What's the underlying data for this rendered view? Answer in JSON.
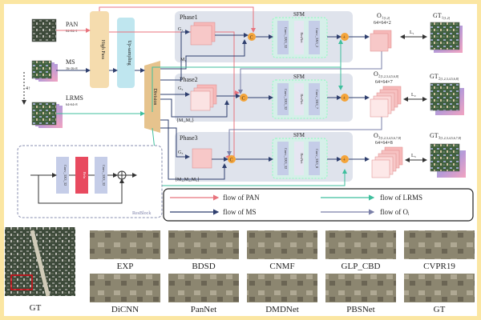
{
  "inputs": {
    "pan": "PAN",
    "pan_size": "64×64×1",
    "ms": "MS",
    "ms_size": "16×16×8",
    "lrms": "LRMS",
    "lrms_size": "64×64×8",
    "scale": "4↑"
  },
  "blocks": {
    "highpass": "High Pass",
    "upsampling": "Up-sampling",
    "division": "Division"
  },
  "phases": [
    {
      "title": "Phase1",
      "g": "G₁",
      "m": "M₁",
      "sfm": "SFM",
      "convs": [
        "Conv_3X3_32",
        "ResNet",
        "Conv_3X3_2"
      ],
      "out": "O₁",
      "out_sub": "[1,2]",
      "out_size": "64×64×2",
      "loss": "L₁",
      "gt": "GT₁",
      "gt_sub": "[1,2]"
    },
    {
      "title": "Phase2",
      "g": "G₂",
      "m": "{M₁,M₂}",
      "sfm": "SFM",
      "convs": [
        "Conv_3X3_32",
        "ResNet",
        "Conv_3X3_7"
      ],
      "out": "O₂",
      "out_sub": "[1,2,3,4,5,6,8]",
      "out_size": "64×64×7",
      "loss": "L₂",
      "gt": "GT₂",
      "gt_sub": "[1,2,3,4,5,6,8]"
    },
    {
      "title": "Phase3",
      "g": "G₃",
      "m": "{M₁,M₂,M₃}",
      "sfm": "SFM",
      "convs": [
        "Conv_3X3_32",
        "ResNet",
        "Conv_3X3_8"
      ],
      "out": "O₃",
      "out_sub": "[1,2,3,4,5,6,7,8]",
      "out_size": "64×64×8",
      "loss": "L₃",
      "gt": "GT₃",
      "gt_sub": "[1,2,3,4,5,6,7,8]"
    }
  ],
  "resblock": {
    "title": "ResBlock",
    "convs": [
      "Conv_3X3_32",
      "Relu",
      "Conv_3X3_32"
    ]
  },
  "legend": [
    {
      "label": "flow of PAN",
      "color": "#e8737d"
    },
    {
      "label": "flow of  LRMS",
      "color": "#3fbf9d"
    },
    {
      "label": "flow of MS",
      "color": "#2f3f6e"
    },
    {
      "label": "flow of Oᵢ",
      "color": "#7a7fa8"
    }
  ],
  "gallery": {
    "gt_main": "GT",
    "row1": [
      "EXP",
      "BDSD",
      "CNMF",
      "GLP_CBD",
      "CVPR19"
    ],
    "row2": [
      "DiCNN",
      "PanNet",
      "DMDNet",
      "PBSNet",
      "GT"
    ]
  },
  "colors": {
    "pan": "#e8737d",
    "lrms": "#3fbf9d",
    "ms": "#2f3f6e",
    "oi": "#7a7fa8",
    "phase_bg": "#dfe3ec",
    "sfm_bg": "#d6efe9",
    "highpass": "#f5dcae",
    "upsampling": "#bfe6ef",
    "division": "#e6c38d",
    "plus": "#f4a43a",
    "cube": "#f7b9b9"
  }
}
